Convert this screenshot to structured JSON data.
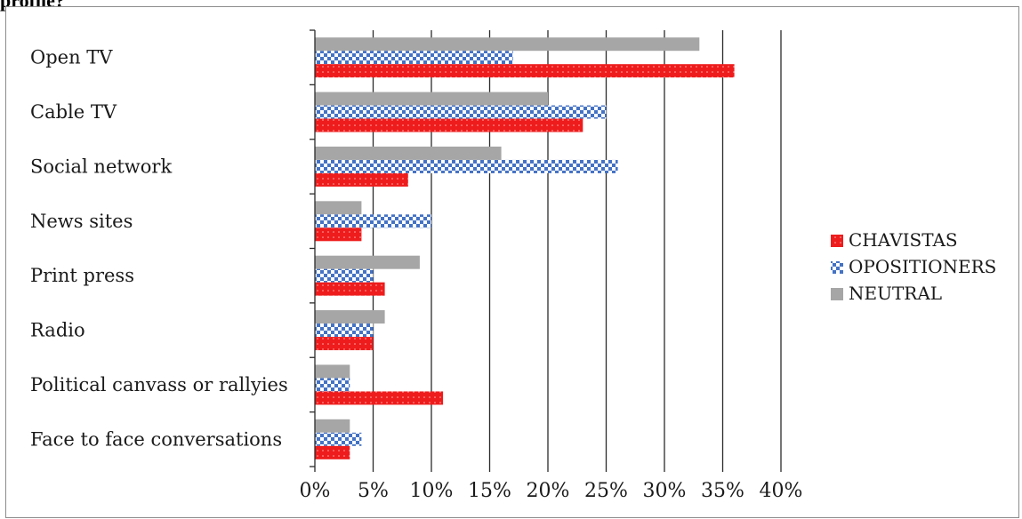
{
  "page": {
    "heading": "profile?"
  },
  "chart_data": {
    "type": "bar",
    "orientation": "horizontal",
    "title": "",
    "xlabel": "",
    "ylabel": "",
    "xlim": [
      0,
      40
    ],
    "tick_format": "percent",
    "ticks": [
      "0%",
      "5%",
      "10%",
      "15%",
      "20%",
      "25%",
      "30%",
      "35%",
      "40%"
    ],
    "grid": "vertical",
    "legend_position": "right",
    "categories": [
      "Open TV",
      "Cable TV",
      "Social network",
      "News sites",
      "Print press",
      "Radio",
      "Political canvass or rallyies",
      "Face to face conversations"
    ],
    "series": [
      {
        "name": "CHAVISTAS",
        "color": "#ee1c1c",
        "pattern": "solid-dotted",
        "values": [
          36,
          23,
          8,
          4,
          6,
          5,
          11,
          3
        ]
      },
      {
        "name": "OPOSITIONERS",
        "color": "#4472c4",
        "pattern": "checkered",
        "values": [
          17,
          25,
          26,
          10,
          5,
          5,
          3,
          4
        ]
      },
      {
        "name": "NEUTRAL",
        "color": "#a6a6a6",
        "pattern": "solid",
        "values": [
          33,
          20,
          16,
          4,
          9,
          6,
          3,
          3
        ]
      }
    ]
  }
}
